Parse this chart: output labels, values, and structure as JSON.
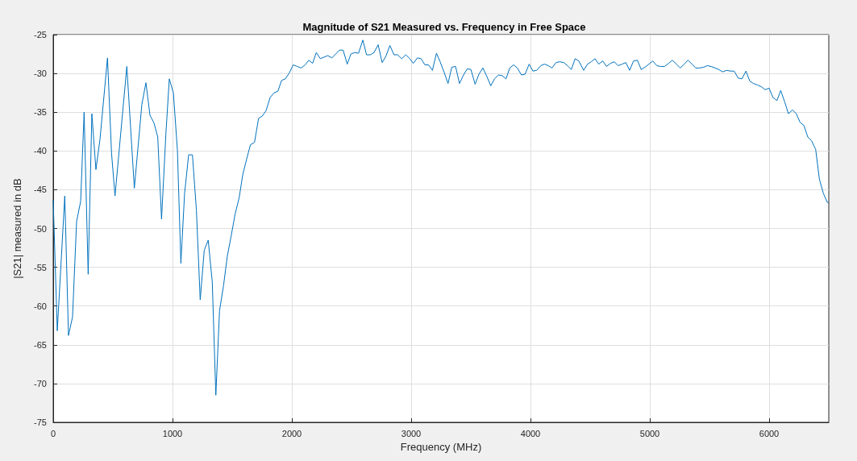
{
  "chart_data": {
    "type": "line",
    "title": "Magnitude of S21 Measured vs. Frequency in Free Space",
    "xlabel": "Frequency (MHz)",
    "ylabel": "|S21| measured in dB",
    "xlim": [
      0,
      6500
    ],
    "xticks": [
      0,
      1000,
      2000,
      3000,
      4000,
      5000,
      6000
    ],
    "ylim": [
      -75,
      -25
    ],
    "yticks": [
      -75,
      -70,
      -65,
      -60,
      -55,
      -50,
      -45,
      -40,
      -35,
      -30,
      -25
    ],
    "grid": true,
    "marker": "none",
    "line_style": "solid",
    "series": [
      {
        "color": "#0072bd",
        "x": [
          0,
          34,
          97,
          128,
          162,
          196,
          230,
          259,
          293,
          324,
          358,
          392,
          455,
          489,
          518,
          617,
          680,
          743,
          777,
          811,
          845,
          876,
          908,
          944,
          973,
          1007,
          1041,
          1070,
          1101,
          1135,
          1167,
          1200,
          1232,
          1266,
          1299,
          1333,
          1363,
          1394,
          1428,
          1459,
          1491,
          1525,
          1559,
          1588,
          1622,
          1653,
          1687,
          1721,
          1752,
          1784,
          1818,
          1851,
          1883,
          1914,
          1946,
          1980,
          2011,
          2045,
          2077,
          2111,
          2142,
          2174,
          2205,
          2239,
          2301,
          2336,
          2399,
          2430,
          2464,
          2495,
          2527,
          2559,
          2595,
          2626,
          2657,
          2689,
          2723,
          2757,
          2788,
          2822,
          2856,
          2887,
          2921,
          2955,
          2989,
          3018,
          3052,
          3083,
          3115,
          3146,
          3178,
          3212,
          3243,
          3275,
          3309,
          3340,
          3372,
          3405,
          3439,
          3470,
          3501,
          3536,
          3568,
          3601,
          3635,
          3667,
          3698,
          3732,
          3764,
          3795,
          3826,
          3858,
          3890,
          3924,
          3955,
          3989,
          4020,
          4052,
          4086,
          4117,
          4149,
          4180,
          4214,
          4245,
          4279,
          4311,
          4342,
          4374,
          4405,
          4446,
          4478,
          4509,
          4541,
          4572,
          4606,
          4637,
          4671,
          4703,
          4734,
          4768,
          4799,
          4831,
          4863,
          4896,
          4928,
          4959,
          4993,
          5025,
          5059,
          5090,
          5124,
          5157,
          5189,
          5223,
          5255,
          5289,
          5320,
          5354,
          5385,
          5417,
          5451,
          5482,
          5514,
          5547,
          5579,
          5610,
          5644,
          5676,
          5707,
          5741,
          5772,
          5806,
          5838,
          5869,
          5903,
          5934,
          5966,
          6000,
          6032,
          6066,
          6097,
          6131,
          6162,
          6196,
          6228,
          6259,
          6291,
          6324,
          6356,
          6390,
          6421,
          6453,
          6486,
          6500
        ],
        "values": [
          -46.3,
          -63.2,
          -45.8,
          -63.8,
          -61.4,
          -49.1,
          -46.5,
          -35.0,
          -55.9,
          -35.2,
          -42.4,
          -38.5,
          -28.0,
          -40.3,
          -45.8,
          -29.1,
          -44.8,
          -34.0,
          -31.2,
          -35.4,
          -36.4,
          -38.2,
          -48.8,
          -37.9,
          -30.7,
          -32.5,
          -39.9,
          -54.5,
          -45.5,
          -40.5,
          -40.5,
          -47.6,
          -59.2,
          -52.8,
          -51.5,
          -56.9,
          -71.5,
          -60.6,
          -57.3,
          -53.6,
          -51.0,
          -48.1,
          -46.0,
          -43.1,
          -41.0,
          -39.2,
          -38.9,
          -35.8,
          -35.5,
          -34.8,
          -33.1,
          -32.5,
          -32.3,
          -30.9,
          -30.7,
          -29.9,
          -28.9,
          -29.1,
          -29.3,
          -28.9,
          -28.3,
          -28.7,
          -27.3,
          -28.1,
          -27.7,
          -28.0,
          -27.0,
          -27.0,
          -28.8,
          -27.5,
          -27.3,
          -27.4,
          -25.7,
          -27.6,
          -27.6,
          -27.3,
          -26.3,
          -28.6,
          -27.8,
          -26.4,
          -27.6,
          -27.6,
          -28.1,
          -27.6,
          -28.1,
          -28.7,
          -28.0,
          -28.1,
          -28.9,
          -28.9,
          -29.6,
          -27.4,
          -28.5,
          -29.8,
          -31.3,
          -29.2,
          -29.1,
          -31.3,
          -30.2,
          -29.4,
          -29.5,
          -31.4,
          -30.1,
          -29.3,
          -30.4,
          -31.6,
          -30.7,
          -30.2,
          -30.3,
          -30.7,
          -29.3,
          -28.9,
          -29.3,
          -30.2,
          -30.1,
          -28.8,
          -29.7,
          -29.6,
          -29.0,
          -28.8,
          -29.0,
          -29.3,
          -28.6,
          -28.5,
          -28.6,
          -29.0,
          -29.5,
          -28.1,
          -28.4,
          -29.6,
          -28.8,
          -28.5,
          -28.1,
          -28.8,
          -28.4,
          -29.1,
          -28.7,
          -28.5,
          -29.0,
          -28.8,
          -28.6,
          -29.6,
          -28.4,
          -28.3,
          -29.5,
          -29.2,
          -28.8,
          -28.4,
          -29.0,
          -29.1,
          -29.1,
          -28.7,
          -28.3,
          -28.8,
          -29.3,
          -28.8,
          -28.3,
          -28.8,
          -29.3,
          -29.3,
          -29.2,
          -29.0,
          -29.1,
          -29.3,
          -29.5,
          -29.8,
          -29.6,
          -29.7,
          -29.7,
          -30.6,
          -30.7,
          -29.7,
          -31.0,
          -31.3,
          -31.5,
          -31.7,
          -32.1,
          -31.9,
          -33.1,
          -33.5,
          -32.2,
          -33.7,
          -35.2,
          -34.7,
          -35.2,
          -36.3,
          -36.7,
          -38.2,
          -38.7,
          -39.8,
          -43.6,
          -45.4,
          -46.6,
          -46.7
        ]
      }
    ]
  }
}
